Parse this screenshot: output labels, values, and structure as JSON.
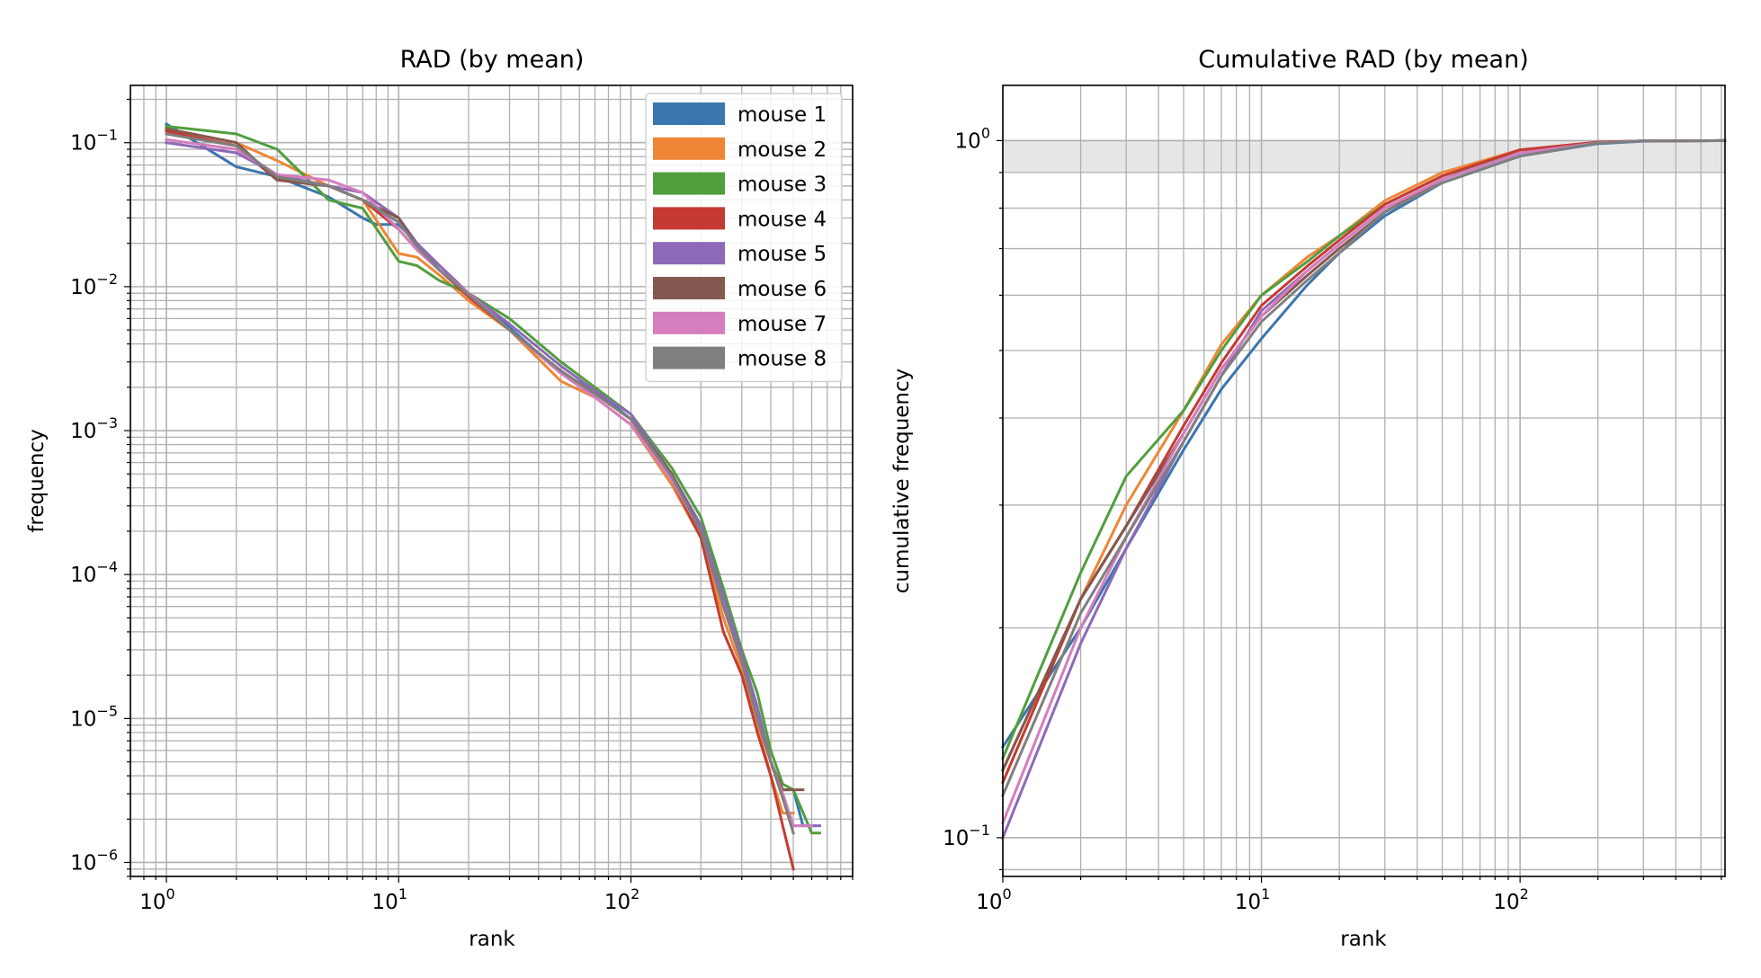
{
  "chart_data": [
    {
      "type": "line",
      "title": "RAD (by mean)",
      "xlabel": "rank",
      "ylabel": "frequency",
      "xscale": "log",
      "yscale": "log",
      "xlim": [
        0.7,
        900
      ],
      "ylim": [
        8e-07,
        0.25
      ],
      "grid": "major and minor",
      "legend": "top-right",
      "xticks": [
        {
          "base": "10",
          "exp": "0",
          "v": 1
        },
        {
          "base": "10",
          "exp": "1",
          "v": 10
        },
        {
          "base": "10",
          "exp": "2",
          "v": 100
        }
      ],
      "yticks": [
        {
          "base": "10",
          "exp": "−1",
          "v": 0.1
        },
        {
          "base": "10",
          "exp": "−2",
          "v": 0.01
        },
        {
          "base": "10",
          "exp": "−3",
          "v": 0.001
        },
        {
          "base": "10",
          "exp": "−4",
          "v": 0.0001
        },
        {
          "base": "10",
          "exp": "−5",
          "v": 1e-05
        },
        {
          "base": "10",
          "exp": "−6",
          "v": 1e-06
        }
      ],
      "series": [
        {
          "name": "mouse 1",
          "color": "#3a75af",
          "x": [
            1,
            2,
            3,
            5,
            7,
            8,
            10,
            12,
            15,
            20,
            30,
            50,
            70,
            100,
            150,
            200,
            250,
            300,
            350,
            400,
            450,
            500,
            550,
            620
          ],
          "y": [
            0.135,
            0.068,
            0.058,
            0.042,
            0.03,
            0.027,
            0.027,
            0.02,
            0.013,
            0.009,
            0.0052,
            0.0025,
            0.0019,
            0.0012,
            0.0005,
            0.00021,
            6e-05,
            2.5e-05,
            1.2e-05,
            5e-06,
            3.2e-06,
            3.2e-06,
            1.8e-06,
            1.8e-06
          ]
        },
        {
          "name": "mouse 2",
          "color": "#ef8636",
          "x": [
            1,
            2,
            3,
            5,
            7,
            10,
            12,
            15,
            20,
            30,
            50,
            70,
            100,
            150,
            200,
            250,
            300,
            350,
            400,
            450,
            500
          ],
          "y": [
            0.125,
            0.1,
            0.075,
            0.05,
            0.04,
            0.017,
            0.016,
            0.012,
            0.008,
            0.005,
            0.0022,
            0.0017,
            0.0011,
            0.00042,
            0.00018,
            5e-05,
            2.2e-05,
            9e-06,
            4e-06,
            2.2e-06,
            2.2e-06
          ]
        },
        {
          "name": "mouse 3",
          "color": "#519e3e",
          "x": [
            1,
            2,
            3,
            5,
            7,
            10,
            12,
            15,
            20,
            30,
            50,
            70,
            100,
            150,
            200,
            250,
            300,
            350,
            400,
            450,
            500,
            600,
            650
          ],
          "y": [
            0.13,
            0.115,
            0.09,
            0.04,
            0.035,
            0.015,
            0.014,
            0.011,
            0.009,
            0.006,
            0.003,
            0.002,
            0.0013,
            0.00055,
            0.00025,
            8e-05,
            3e-05,
            1.5e-05,
            6e-06,
            3.5e-06,
            3.2e-06,
            1.6e-06,
            1.6e-06
          ]
        },
        {
          "name": "mouse 4",
          "color": "#c53a32",
          "x": [
            1,
            2,
            3,
            5,
            7,
            10,
            12,
            15,
            20,
            30,
            50,
            70,
            100,
            150,
            200,
            250,
            300,
            350,
            400,
            450,
            500
          ],
          "y": [
            0.12,
            0.095,
            0.055,
            0.05,
            0.04,
            0.025,
            0.018,
            0.013,
            0.0085,
            0.005,
            0.0025,
            0.0018,
            0.0012,
            0.00045,
            0.00018,
            4e-05,
            2e-05,
            8e-06,
            4e-06,
            1.8e-06,
            9e-07
          ]
        },
        {
          "name": "mouse 5",
          "color": "#8d69b8",
          "x": [
            1,
            2,
            3,
            5,
            7,
            10,
            12,
            15,
            20,
            30,
            50,
            70,
            100,
            150,
            200,
            250,
            300,
            350,
            400,
            450,
            500,
            550,
            650
          ],
          "y": [
            0.1,
            0.085,
            0.06,
            0.05,
            0.045,
            0.03,
            0.02,
            0.014,
            0.009,
            0.0055,
            0.0028,
            0.0019,
            0.0013,
            0.0005,
            0.00022,
            7e-05,
            2.8e-05,
            1.2e-05,
            5e-06,
            3e-06,
            1.8e-06,
            1.8e-06,
            1.8e-06
          ]
        },
        {
          "name": "mouse 6",
          "color": "#84584e",
          "x": [
            1,
            2,
            3,
            5,
            7,
            10,
            12,
            15,
            20,
            30,
            50,
            70,
            100,
            150,
            200,
            250,
            300,
            350,
            400,
            450,
            500,
            550
          ],
          "y": [
            0.125,
            0.1,
            0.055,
            0.05,
            0.04,
            0.03,
            0.019,
            0.013,
            0.009,
            0.005,
            0.0026,
            0.0018,
            0.0012,
            0.0005,
            0.0002,
            6e-05,
            2.5e-05,
            1e-05,
            5e-06,
            3.2e-06,
            3.2e-06,
            3.2e-06
          ]
        },
        {
          "name": "mouse 7",
          "color": "#d57dbe",
          "x": [
            1,
            2,
            3,
            5,
            7,
            10,
            12,
            15,
            20,
            30,
            50,
            70,
            100,
            150,
            200,
            250,
            300,
            350,
            400,
            450,
            500,
            550,
            600
          ],
          "y": [
            0.105,
            0.09,
            0.06,
            0.055,
            0.045,
            0.025,
            0.018,
            0.013,
            0.009,
            0.005,
            0.0025,
            0.0017,
            0.0011,
            0.00045,
            0.0002,
            6e-05,
            2.5e-05,
            1e-05,
            5e-06,
            3e-06,
            1.8e-06,
            1.8e-06,
            1.8e-06
          ]
        },
        {
          "name": "mouse 8",
          "color": "#7f7f7f",
          "x": [
            1,
            2,
            3,
            5,
            7,
            10,
            12,
            15,
            20,
            30,
            50,
            70,
            100,
            150,
            200,
            250,
            300,
            350,
            400,
            450,
            500
          ],
          "y": [
            0.115,
            0.095,
            0.058,
            0.05,
            0.04,
            0.028,
            0.019,
            0.013,
            0.0088,
            0.005,
            0.0026,
            0.0018,
            0.0012,
            0.00048,
            0.0002,
            6e-05,
            2.5e-05,
            1e-05,
            5e-06,
            2.8e-06,
            1.6e-06
          ]
        }
      ]
    },
    {
      "type": "line",
      "title": "Cumulative RAD (by mean)",
      "xlabel": "rank",
      "ylabel": "cumulative frequency",
      "xscale": "log",
      "yscale": "log",
      "xlim": [
        1,
        620
      ],
      "ylim": [
        0.088,
        1.2
      ],
      "grid": "major and minor",
      "shaded_band": [
        0.9,
        1.0
      ],
      "xticks": [
        {
          "base": "10",
          "exp": "0",
          "v": 1
        },
        {
          "base": "10",
          "exp": "1",
          "v": 10
        },
        {
          "base": "10",
          "exp": "2",
          "v": 100
        }
      ],
      "yticks": [
        {
          "base": "10",
          "exp": "0",
          "v": 1
        },
        {
          "base": "10",
          "exp": "−1",
          "v": 0.1
        }
      ],
      "series": [
        {
          "name": "mouse 1",
          "color": "#3a75af",
          "x": [
            1,
            2,
            3,
            5,
            7,
            10,
            15,
            20,
            30,
            50,
            100,
            200,
            300,
            620
          ],
          "y": [
            0.135,
            0.2,
            0.26,
            0.36,
            0.44,
            0.52,
            0.62,
            0.69,
            0.78,
            0.87,
            0.95,
            0.99,
            0.998,
            1.0
          ]
        },
        {
          "name": "mouse 2",
          "color": "#ef8636",
          "x": [
            1,
            2,
            3,
            5,
            7,
            10,
            15,
            20,
            30,
            50,
            100,
            200,
            300,
            620
          ],
          "y": [
            0.125,
            0.22,
            0.3,
            0.41,
            0.51,
            0.6,
            0.68,
            0.73,
            0.82,
            0.9,
            0.97,
            0.995,
            0.999,
            1.0
          ]
        },
        {
          "name": "mouse 3",
          "color": "#519e3e",
          "x": [
            1,
            2,
            3,
            5,
            7,
            10,
            15,
            20,
            30,
            50,
            100,
            200,
            300,
            620
          ],
          "y": [
            0.13,
            0.24,
            0.33,
            0.41,
            0.5,
            0.6,
            0.67,
            0.73,
            0.81,
            0.89,
            0.96,
            0.995,
            0.999,
            1.0
          ]
        },
        {
          "name": "mouse 4",
          "color": "#c53a32",
          "x": [
            1,
            2,
            3,
            5,
            7,
            10,
            15,
            20,
            30,
            50,
            100,
            200,
            300,
            620
          ],
          "y": [
            0.12,
            0.22,
            0.28,
            0.39,
            0.48,
            0.58,
            0.66,
            0.72,
            0.81,
            0.89,
            0.97,
            0.995,
            0.999,
            1.0
          ]
        },
        {
          "name": "mouse 5",
          "color": "#8d69b8",
          "x": [
            1,
            2,
            3,
            5,
            7,
            10,
            15,
            20,
            30,
            50,
            100,
            200,
            300,
            620
          ],
          "y": [
            0.1,
            0.19,
            0.26,
            0.37,
            0.46,
            0.57,
            0.65,
            0.71,
            0.8,
            0.88,
            0.96,
            0.993,
            0.999,
            1.0
          ]
        },
        {
          "name": "mouse 6",
          "color": "#84584e",
          "x": [
            1,
            2,
            3,
            5,
            7,
            10,
            15,
            20,
            30,
            50,
            100,
            200,
            300,
            620
          ],
          "y": [
            0.125,
            0.22,
            0.28,
            0.38,
            0.47,
            0.56,
            0.64,
            0.7,
            0.79,
            0.88,
            0.96,
            0.993,
            0.999,
            1.0
          ]
        },
        {
          "name": "mouse 7",
          "color": "#d57dbe",
          "x": [
            1,
            2,
            3,
            5,
            7,
            10,
            15,
            20,
            30,
            50,
            100,
            200,
            300,
            620
          ],
          "y": [
            0.105,
            0.2,
            0.27,
            0.38,
            0.47,
            0.56,
            0.65,
            0.71,
            0.8,
            0.88,
            0.96,
            0.993,
            0.999,
            1.0
          ]
        },
        {
          "name": "mouse 8",
          "color": "#7f7f7f",
          "x": [
            1,
            2,
            3,
            5,
            7,
            10,
            15,
            20,
            30,
            50,
            100,
            200,
            300,
            620
          ],
          "y": [
            0.115,
            0.21,
            0.27,
            0.37,
            0.46,
            0.55,
            0.63,
            0.69,
            0.79,
            0.87,
            0.95,
            0.992,
            0.999,
            1.0
          ]
        }
      ]
    }
  ]
}
